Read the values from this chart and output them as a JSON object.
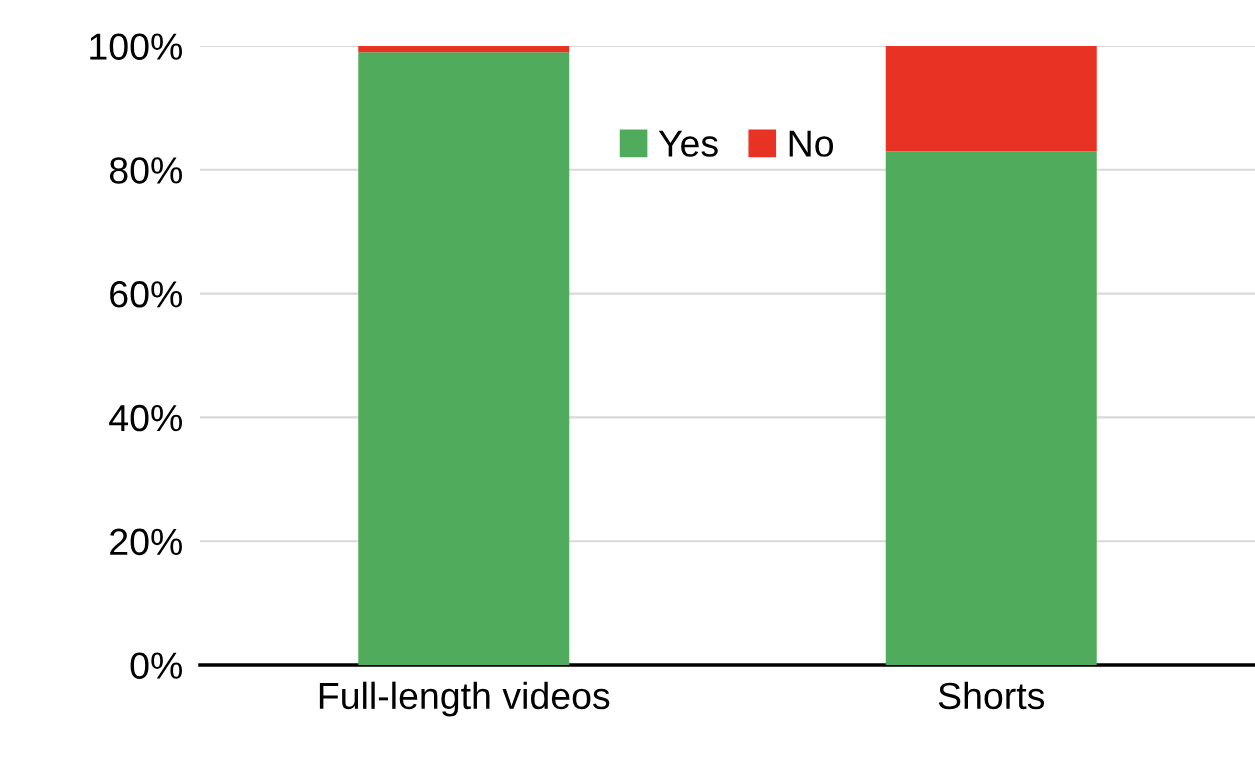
{
  "chart_data": {
    "type": "bar",
    "stacked": true,
    "categories": [
      "Full-length videos",
      "Shorts"
    ],
    "series": [
      {
        "name": "Yes",
        "color": "#50ac5c",
        "values": [
          99,
          83
        ]
      },
      {
        "name": "No",
        "color": "#e83324",
        "values": [
          1,
          17
        ]
      }
    ],
    "ylim": [
      0,
      100
    ],
    "yticks": [
      {
        "value": 0,
        "label": "0%"
      },
      {
        "value": 20,
        "label": "20%"
      },
      {
        "value": 40,
        "label": "40%"
      },
      {
        "value": 60,
        "label": "60%"
      },
      {
        "value": 80,
        "label": "80%"
      },
      {
        "value": 100,
        "label": "100%"
      }
    ],
    "grid": "y",
    "legend": "top"
  }
}
